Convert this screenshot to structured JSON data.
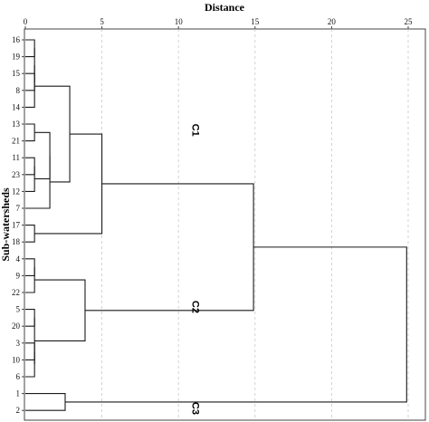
{
  "chart_data": {
    "type": "dendrogram",
    "title": "",
    "xlabel": "Distance",
    "ylabel": "Sub-watersheds",
    "xlim": [
      0,
      25
    ],
    "x_ticks": [
      0,
      5,
      10,
      15,
      20,
      25
    ],
    "grid": "vertical dashed",
    "leaves": [
      "16",
      "19",
      "15",
      "8",
      "14",
      "13",
      "21",
      "11",
      "23",
      "12",
      "7",
      "17",
      "18",
      "4",
      "9",
      "22",
      "5",
      "20",
      "3",
      "10",
      "6",
      "1",
      "2"
    ],
    "merges": [
      {
        "a": "16",
        "b": "19",
        "distance": 0.6
      },
      {
        "a": "15",
        "b": "8",
        "distance": 0.6
      },
      {
        "a": "16,19",
        "b": "15,8",
        "distance": 0.6
      },
      {
        "a": "16,19,15,8",
        "b": "14",
        "distance": 0.6
      },
      {
        "a": "13",
        "b": "21",
        "distance": 0.6
      },
      {
        "a": "11",
        "b": "23",
        "distance": 0.6
      },
      {
        "a": "11,23",
        "b": "12",
        "distance": 0.6
      },
      {
        "a": "13,21",
        "b": "11,23,12",
        "distance": 1.6
      },
      {
        "a": "13,21,11,23,12",
        "b": "7",
        "distance": 1.6
      },
      {
        "a": "16,19,15,8,14",
        "b": "13,21,11,23,12,7",
        "distance": 2.9
      },
      {
        "a": "17",
        "b": "18",
        "distance": 0.6
      },
      {
        "a": "16,19,15,8,14,13,21,11,23,12,7",
        "b": "17,18",
        "distance": 5.0
      },
      {
        "a": "4",
        "b": "9",
        "distance": 0.6
      },
      {
        "a": "4,9",
        "b": "22",
        "distance": 0.6
      },
      {
        "a": "5",
        "b": "20",
        "distance": 0.6
      },
      {
        "a": "3",
        "b": "10",
        "distance": 0.6
      },
      {
        "a": "3,10",
        "b": "6",
        "distance": 0.6
      },
      {
        "a": "5,20",
        "b": "3,10,6",
        "distance": 0.6
      },
      {
        "a": "4,9,22",
        "b": "5,20,3,10,6",
        "distance": 3.9
      },
      {
        "a": "C1",
        "b": "C2",
        "distance": 14.9
      },
      {
        "a": "1",
        "b": "2",
        "distance": 2.6
      },
      {
        "a": "C1,C2",
        "b": "1,2",
        "distance": 24.9
      }
    ],
    "clusters": [
      {
        "name": "C1",
        "members": [
          "16",
          "19",
          "15",
          "8",
          "14",
          "13",
          "21",
          "11",
          "23",
          "12",
          "7",
          "17",
          "18"
        ]
      },
      {
        "name": "C2",
        "members": [
          "4",
          "9",
          "22",
          "5",
          "20",
          "3",
          "10",
          "6"
        ]
      },
      {
        "name": "C3",
        "members": [
          "1",
          "2"
        ]
      }
    ]
  }
}
